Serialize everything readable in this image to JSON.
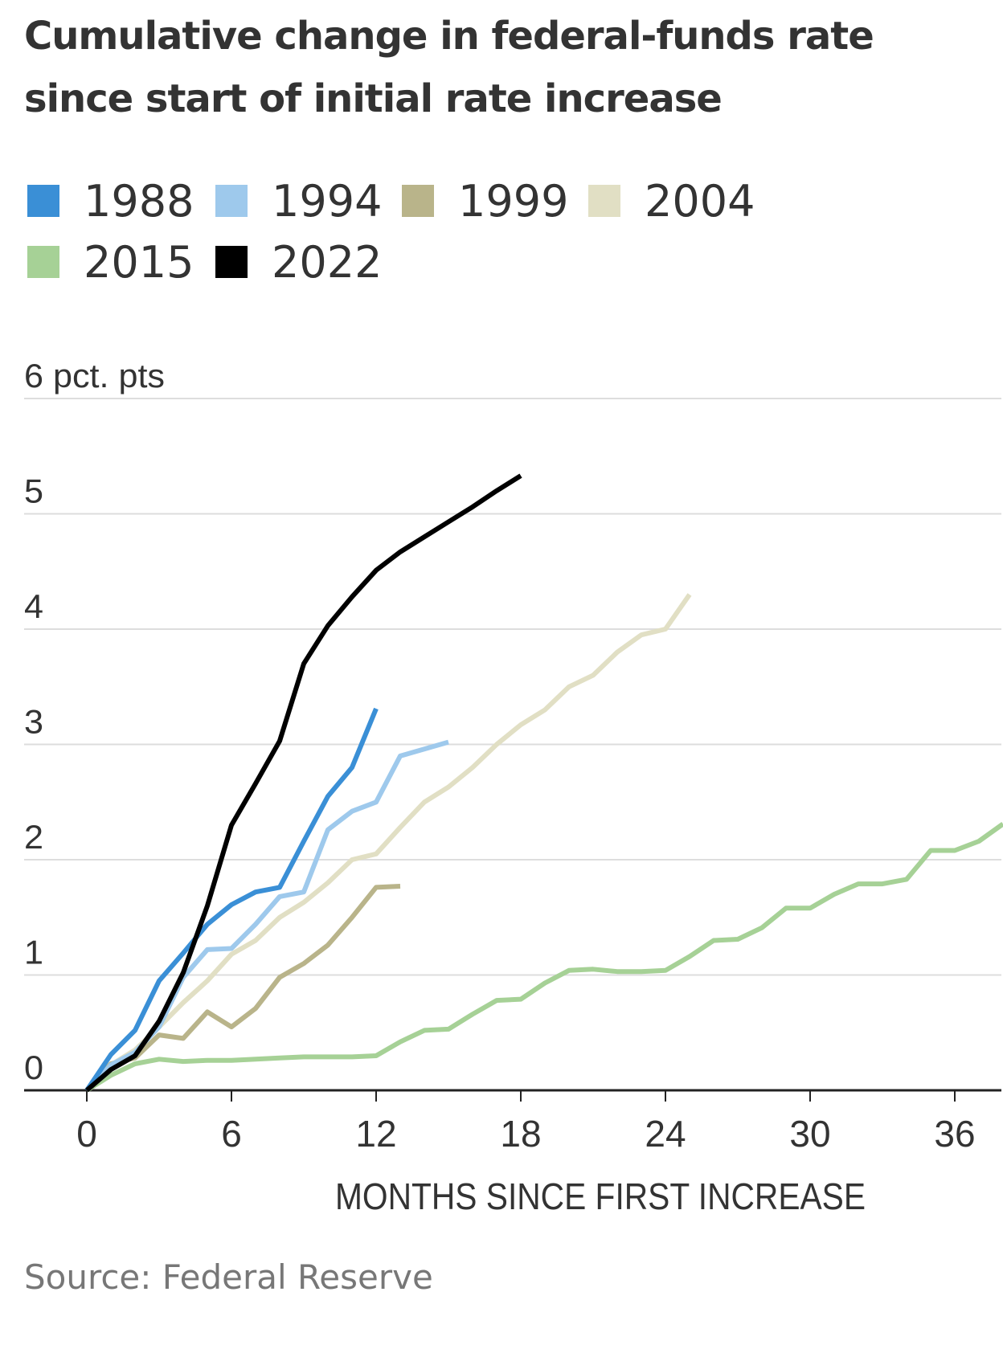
{
  "title": "Cumulative change in federal-funds rate since start of initial rate increase",
  "source": "Source: Federal Reserve",
  "legend": [
    {
      "label": "1988",
      "color": "#3a8fd6"
    },
    {
      "label": "1994",
      "color": "#9ec9ec"
    },
    {
      "label": "1999",
      "color": "#b9b48a"
    },
    {
      "label": "2004",
      "color": "#e1dfc4"
    },
    {
      "label": "2015",
      "color": "#a6d196"
    },
    {
      "label": "2022",
      "color": "#000000"
    }
  ],
  "chart_data": {
    "type": "line",
    "title": "Cumulative change in federal-funds rate since start of initial rate increase",
    "ylabel": "6 pct. pts",
    "xlabel": "MONTHS SINCE FIRST INCREASE",
    "xlim": [
      0,
      38
    ],
    "ylim": [
      0,
      6
    ],
    "xticks": [
      0,
      6,
      12,
      18,
      24,
      30,
      36
    ],
    "yticks": [
      0,
      1,
      2,
      3,
      4,
      5,
      6
    ],
    "ytick_labels": [
      "0",
      "1",
      "2",
      "3",
      "4",
      "5",
      "6 pct. pts"
    ],
    "grid": true,
    "legend_position": "top",
    "series": [
      {
        "name": "2015",
        "color": "#a6d196",
        "x": [
          0,
          1,
          2,
          3,
          4,
          5,
          6,
          7,
          8,
          9,
          10,
          11,
          12,
          13,
          14,
          15,
          16,
          17,
          18,
          19,
          20,
          21,
          22,
          23,
          24,
          25,
          26,
          27,
          28,
          29,
          30,
          31,
          32,
          33,
          34,
          35,
          36,
          37,
          38
        ],
        "y": [
          0,
          0.13,
          0.23,
          0.27,
          0.25,
          0.26,
          0.26,
          0.27,
          0.28,
          0.29,
          0.29,
          0.29,
          0.3,
          0.42,
          0.52,
          0.53,
          0.66,
          0.78,
          0.79,
          0.93,
          1.04,
          1.05,
          1.03,
          1.03,
          1.04,
          1.16,
          1.3,
          1.31,
          1.41,
          1.58,
          1.58,
          1.7,
          1.79,
          1.79,
          1.83,
          2.08,
          2.08,
          2.16,
          2.31
        ]
      },
      {
        "name": "2004",
        "color": "#e1dfc4",
        "x": [
          0,
          1,
          2,
          3,
          4,
          5,
          6,
          7,
          8,
          9,
          10,
          11,
          12,
          13,
          14,
          15,
          16,
          17,
          18,
          19,
          20,
          21,
          22,
          23,
          24,
          25
        ],
        "y": [
          0,
          0.22,
          0.35,
          0.55,
          0.76,
          0.95,
          1.18,
          1.3,
          1.5,
          1.63,
          1.8,
          2.0,
          2.05,
          2.28,
          2.5,
          2.63,
          2.8,
          3.0,
          3.17,
          3.3,
          3.5,
          3.6,
          3.8,
          3.95,
          4.0,
          4.3
        ]
      },
      {
        "name": "1999",
        "color": "#b9b48a",
        "x": [
          0,
          1,
          2,
          3,
          4,
          5,
          6,
          7,
          8,
          9,
          10,
          11,
          12,
          13
        ],
        "y": [
          0,
          0.23,
          0.28,
          0.48,
          0.45,
          0.68,
          0.55,
          0.71,
          0.98,
          1.1,
          1.26,
          1.5,
          1.76,
          1.77
        ]
      },
      {
        "name": "1994",
        "color": "#9ec9ec",
        "x": [
          0,
          1,
          2,
          3,
          4,
          5,
          6,
          7,
          8,
          9,
          10,
          11,
          12,
          13,
          14,
          15
        ],
        "y": [
          0,
          0.22,
          0.33,
          0.55,
          0.98,
          1.22,
          1.23,
          1.44,
          1.68,
          1.72,
          2.26,
          2.42,
          2.5,
          2.9,
          2.96,
          3.02
        ]
      },
      {
        "name": "1988",
        "color": "#3a8fd6",
        "x": [
          0,
          1,
          2,
          3,
          4,
          5,
          6,
          7,
          8,
          9,
          10,
          11,
          12
        ],
        "y": [
          0,
          0.31,
          0.52,
          0.95,
          1.19,
          1.44,
          1.61,
          1.72,
          1.76,
          2.16,
          2.55,
          2.8,
          3.31
        ]
      },
      {
        "name": "2022",
        "color": "#000000",
        "x": [
          0,
          1,
          2,
          3,
          4,
          5,
          6,
          7,
          8,
          9,
          10,
          11,
          12,
          13,
          14,
          15,
          16,
          17,
          18
        ],
        "y": [
          0,
          0.18,
          0.3,
          0.6,
          1.02,
          1.6,
          2.3,
          2.66,
          3.03,
          3.7,
          4.03,
          4.28,
          4.51,
          4.67,
          4.8,
          4.93,
          5.06,
          5.2,
          5.33
        ]
      }
    ]
  }
}
